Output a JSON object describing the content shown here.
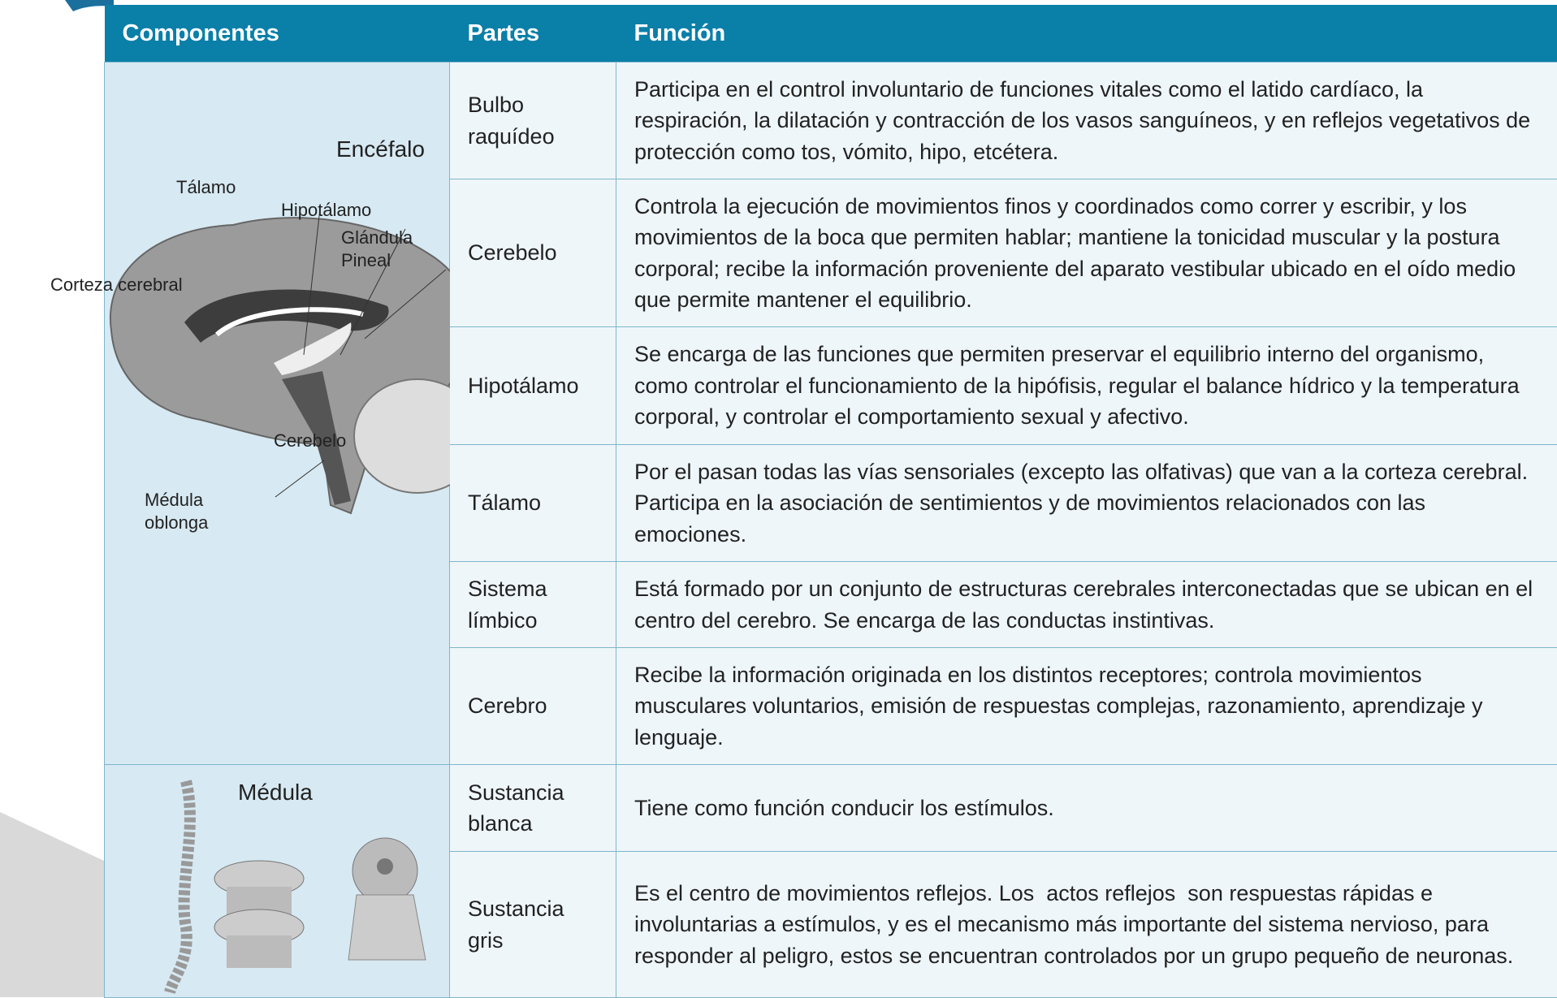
{
  "header": {
    "columns": [
      "Componentes",
      "Partes",
      "Función"
    ]
  },
  "groups": [
    {
      "name": "Encéfalo",
      "labels": [
        "Tálamo",
        "Hipotálamo",
        "Glándula Pineal",
        "Corteza cerebral",
        "Cerebelo",
        "Médula oblonga"
      ],
      "rows": [
        {
          "part": "Bulbo raquídeo",
          "function": "Participa en el control involuntario de funciones vitales como el latido cardíaco, la respiración, la dilatación y contracción de los vasos sanguíneos, y en reflejos vegetativos de protección como tos, vómito, hipo, etcétera."
        },
        {
          "part": "Cerebelo",
          "function": "Controla la ejecución de movimientos finos y coordinados como correr y escribir, y los movimientos de la boca que permiten hablar; mantiene la tonicidad muscular y la postura corporal; recibe la información proveniente del aparato vestibular ubicado en el oído medio que permite mantener el equilibrio."
        },
        {
          "part": "Hipotálamo",
          "function": "Se encarga de las funciones que permiten preservar el equilibrio interno del organismo, como controlar el funcionamiento de la hipófisis, regular el balance hídrico y la temperatura corporal, y controlar el comportamiento sexual y afectivo."
        },
        {
          "part": "Tálamo",
          "function": "Por el pasan todas las vías sensoriales (excepto las olfativas) que van a la corteza cerebral. Participa en la asociación de sentimientos y de movimientos relacionados con las emociones."
        },
        {
          "part": "Sistema límbico",
          "function": "Está formado por un conjunto de estructuras cerebrales interconectadas que se ubican en el centro del cerebro. Se encarga de las conductas instintivas."
        },
        {
          "part": "Cerebro",
          "function": "Recibe la información originada en los distintos receptores; controla movimientos musculares voluntarios, emisión de respuestas complejas, razonamiento, aprendizaje y lenguaje."
        }
      ]
    },
    {
      "name": "Médula",
      "rows": [
        {
          "part": "Sustancia blanca",
          "function": "Tiene como función conducir los estímulos."
        },
        {
          "part": "Sustancia gris",
          "function": "Es el centro de movimientos reflejos. Los  actos reflejos  son respuestas rápidas e involuntarias a estímulos, y es el mecanismo más importante del sistema nervioso, para responder al peligro, estos se encuentran controlados por un grupo pequeño de neuronas."
        }
      ]
    }
  ]
}
